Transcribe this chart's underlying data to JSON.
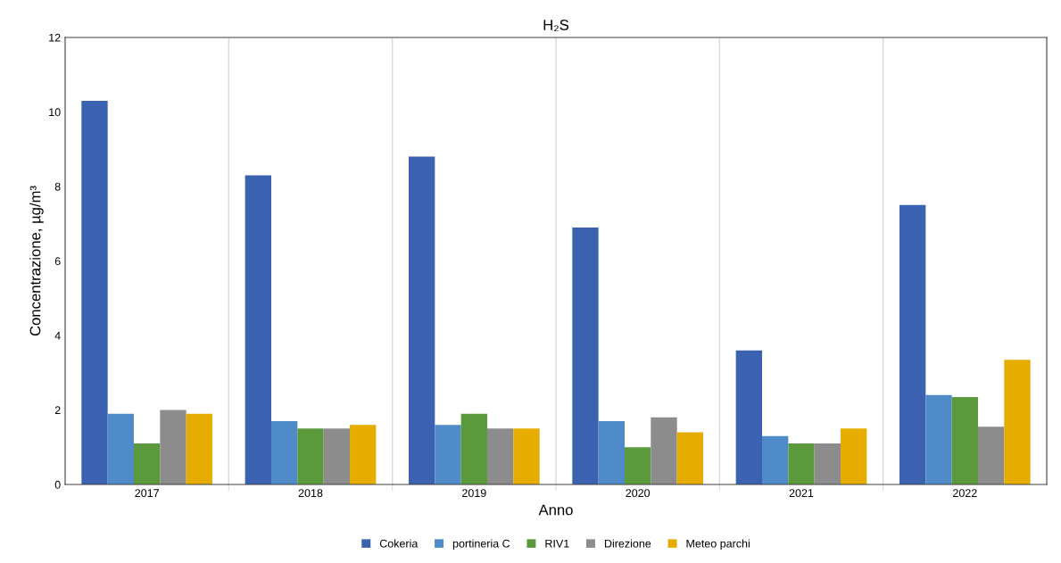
{
  "chart_data": {
    "type": "bar",
    "title": "H₂S",
    "xlabel": "Anno",
    "ylabel": "Concentrazione, µg/m³",
    "categories": [
      "2017",
      "2018",
      "2019",
      "2020",
      "2021",
      "2022"
    ],
    "series": [
      {
        "name": "Cokeria",
        "color": "#3a62b0",
        "values": [
          10.3,
          8.3,
          8.8,
          6.9,
          3.6,
          7.5
        ]
      },
      {
        "name": "portineria C",
        "color": "#4e8bc8",
        "values": [
          1.9,
          1.7,
          1.6,
          1.7,
          1.3,
          2.4
        ]
      },
      {
        "name": "RIV1",
        "color": "#5b9a3c",
        "values": [
          1.1,
          1.5,
          1.9,
          1.0,
          1.1,
          2.35
        ]
      },
      {
        "name": "Direzione",
        "color": "#8c8c8c",
        "values": [
          2.0,
          1.5,
          1.5,
          1.8,
          1.1,
          1.55
        ]
      },
      {
        "name": "Meteo parchi",
        "color": "#e6ad00",
        "values": [
          1.9,
          1.6,
          1.5,
          1.4,
          1.5,
          3.35
        ]
      }
    ],
    "ylim": [
      0,
      12
    ],
    "yticks": [
      0,
      2,
      4,
      6,
      8,
      10,
      12
    ],
    "grid": "x",
    "legend": "bottom"
  }
}
